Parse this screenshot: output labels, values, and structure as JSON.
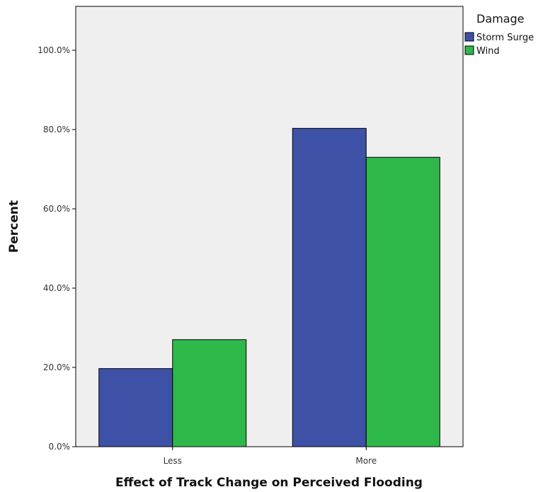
{
  "chart_data": {
    "type": "bar",
    "title": "",
    "xlabel": "Effect of Track Change on Perceived Flooding",
    "ylabel": "Percent",
    "categories": [
      "Less",
      "More"
    ],
    "series": [
      {
        "name": "Storm Surge",
        "values": [
          19.7,
          80.3
        ],
        "color": "#3d51a6"
      },
      {
        "name": "Wind",
        "values": [
          27.0,
          73.0
        ],
        "color": "#2fb84a"
      }
    ],
    "ylim": [
      0,
      100
    ],
    "y_ticks": [
      0,
      20,
      40,
      60,
      80,
      100
    ],
    "y_tick_labels": [
      "0.0%",
      "20.0%",
      "40.0%",
      "60.0%",
      "80.0%",
      "100.0%"
    ],
    "grid": false,
    "legend": {
      "title": "Damage",
      "placement": "top-right, outside plot"
    },
    "colors": {
      "plot_background": "#efefef",
      "axis": "#000000"
    }
  }
}
